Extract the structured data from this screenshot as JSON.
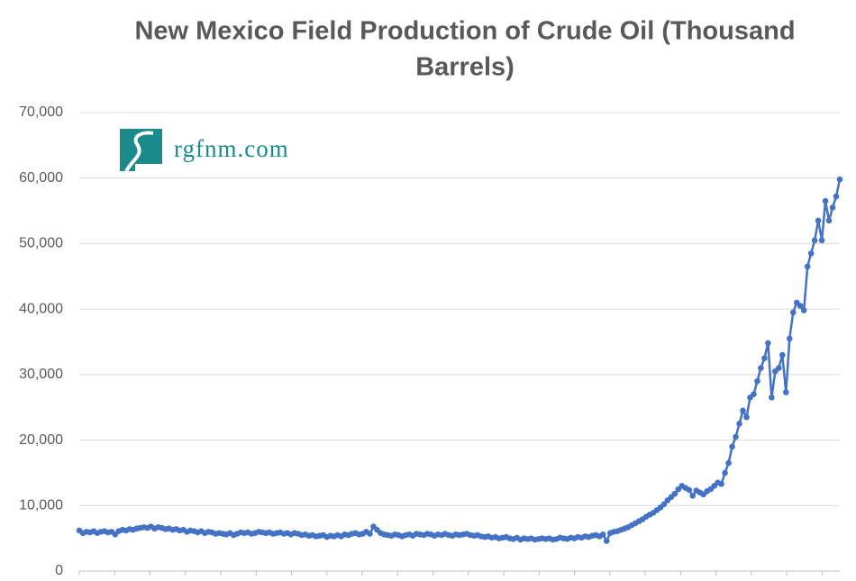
{
  "chart_data": {
    "type": "line",
    "title": [
      "New Mexico Field Production of Crude Oil (Thousand",
      "Barrels)"
    ],
    "logo_text": "rgfnm.com",
    "color": "#4472c4",
    "grid": true,
    "ylim": [
      0,
      70000
    ],
    "yticks": [
      0,
      {
        "value": 10000,
        "label": "10,000"
      },
      {
        "value": 20000,
        "label": "20,000"
      },
      {
        "value": 30000,
        "label": "30,000"
      },
      {
        "value": 40000,
        "label": "40,000"
      },
      {
        "value": 50000,
        "label": "50,000"
      },
      {
        "value": 60000,
        "label": "60,000"
      },
      {
        "value": 70000,
        "label": "70,000"
      }
    ],
    "values": [
      6200,
      5800,
      6000,
      5900,
      6100,
      5800,
      6000,
      6100,
      5900,
      6000,
      5600,
      6100,
      6300,
      6200,
      6400,
      6300,
      6500,
      6600,
      6700,
      6600,
      6800,
      6500,
      6700,
      6600,
      6400,
      6500,
      6300,
      6400,
      6200,
      6300,
      6000,
      6200,
      6100,
      5900,
      6100,
      5800,
      6000,
      5900,
      5700,
      5800,
      5700,
      5600,
      5800,
      5500,
      5700,
      5900,
      5800,
      5900,
      5700,
      5800,
      6000,
      5900,
      5800,
      5900,
      5700,
      5800,
      5900,
      5700,
      5800,
      5600,
      5800,
      5700,
      5500,
      5600,
      5400,
      5500,
      5300,
      5400,
      5500,
      5200,
      5400,
      5300,
      5500,
      5300,
      5600,
      5500,
      5700,
      5800,
      5600,
      5700,
      6000,
      5700,
      6800,
      6300,
      5800,
      5600,
      5500,
      5400,
      5600,
      5500,
      5300,
      5500,
      5600,
      5400,
      5700,
      5600,
      5500,
      5700,
      5600,
      5400,
      5600,
      5500,
      5700,
      5500,
      5400,
      5600,
      5500,
      5600,
      5700,
      5500,
      5400,
      5500,
      5300,
      5200,
      5300,
      5100,
      5200,
      5000,
      5100,
      5200,
      5000,
      4900,
      5100,
      4800,
      5000,
      4900,
      5000,
      4800,
      4900,
      5000,
      4900,
      5000,
      4800,
      4900,
      5100,
      5000,
      4900,
      5100,
      5000,
      5200,
      5100,
      5300,
      5200,
      5400,
      5500,
      5300,
      5600,
      4600,
      5800,
      6000,
      6100,
      6300,
      6500,
      6700,
      7000,
      7300,
      7600,
      7900,
      8300,
      8600,
      8900,
      9300,
      9700,
      10200,
      10800,
      11300,
      11800,
      12500,
      13000,
      12700,
      12400,
      11500,
      12300,
      12000,
      11700,
      12200,
      12500,
      13000,
      13500,
      13300,
      15000,
      16500,
      19000,
      20500,
      22500,
      24500,
      23500,
      26500,
      27000,
      29000,
      31000,
      32500,
      34800,
      26500,
      30500,
      31000,
      33000,
      27300,
      35500,
      39500,
      41000,
      40500,
      39800,
      46500,
      48500,
      50500,
      53500,
      50500,
      56500,
      53500,
      55500,
      57200,
      59800
    ]
  }
}
